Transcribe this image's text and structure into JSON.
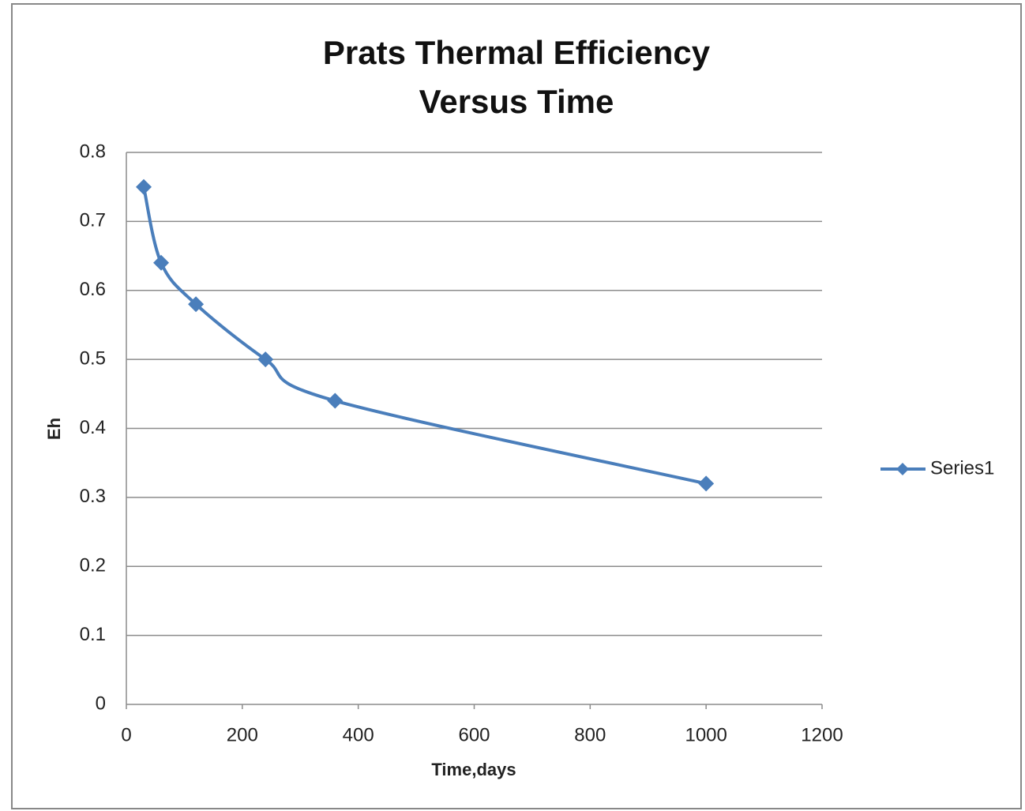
{
  "chart_data": {
    "type": "line",
    "title": "Prats Thermal Efficiency Versus Time",
    "x_label": "Time,days",
    "y_label": "Eh",
    "x": [
      30,
      60,
      120,
      240,
      360,
      1000
    ],
    "series": [
      {
        "name": "Series1",
        "color": "#4a7ebb",
        "values": [
          0.75,
          0.64,
          0.58,
          0.5,
          0.44,
          0.32
        ]
      }
    ],
    "xlim": [
      0,
      1200
    ],
    "xticks": [
      0,
      200,
      400,
      600,
      800,
      1000,
      1200
    ],
    "ylim": [
      0,
      0.8
    ],
    "yticks": [
      0,
      0.1,
      0.2,
      0.3,
      0.4,
      0.5,
      0.6,
      0.7,
      0.8
    ],
    "grid": true,
    "smooth": true,
    "marker": "diamond",
    "legend": "right"
  }
}
